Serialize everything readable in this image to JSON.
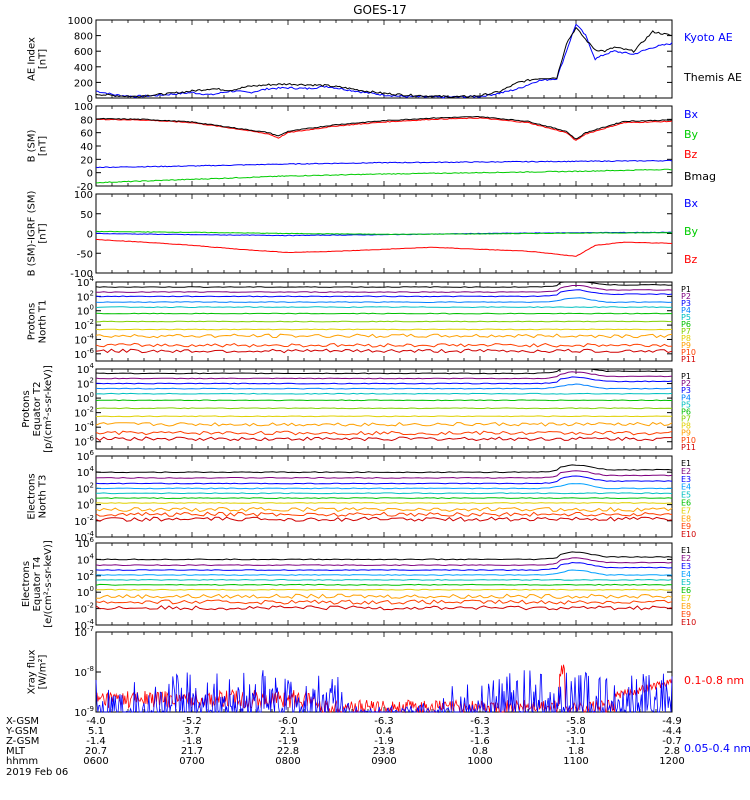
{
  "title": "GOES-17",
  "date_label": "2019 Feb 06",
  "colors": {
    "black": "#000000",
    "blue": "#0000ff",
    "green": "#00cc00",
    "red": "#ff0000"
  },
  "palette_p": [
    "#000000",
    "#7f007f",
    "#0000ff",
    "#0080ff",
    "#00c0c0",
    "#00c000",
    "#80d000",
    "#e0d000",
    "#ffa000",
    "#ff4000",
    "#d00000"
  ],
  "footer": {
    "labels": [
      "X-GSM",
      "Y-GSM",
      "Z-GSM",
      "MLT",
      "hhmm"
    ],
    "times": [
      "0600",
      "0700",
      "0800",
      "0900",
      "1000",
      "1100",
      "1200"
    ],
    "rows": [
      [
        "-4.0",
        "-5.2",
        "-6.0",
        "-6.3",
        "-6.3",
        "-5.8",
        "-4.9"
      ],
      [
        "5.1",
        "3.7",
        "2.1",
        "0.4",
        "-1.3",
        "-3.0",
        "-4.4"
      ],
      [
        "-1.4",
        "-1.8",
        "-1.9",
        "-1.9",
        "-1.6",
        "-1.1",
        "-0.7"
      ],
      [
        "20.7",
        "21.7",
        "22.8",
        "23.8",
        "0.8",
        "1.8",
        "2.8"
      ]
    ]
  },
  "chart_data": [
    {
      "type": "line",
      "ylabel": [
        "AE Index",
        "[nT]"
      ],
      "ylim": [
        0,
        1000
      ],
      "yticks": [
        "0",
        "200",
        "400",
        "600",
        "800",
        "1000"
      ],
      "x_range_hours": [
        6,
        12
      ],
      "series": [
        {
          "name": "Kyoto AE",
          "color": "blue",
          "x": [
            6,
            6.2,
            6.4,
            6.6,
            6.8,
            7.0,
            7.2,
            7.4,
            7.6,
            7.8,
            8.0,
            8.2,
            8.4,
            8.6,
            8.8,
            9.0,
            9.2,
            9.4,
            9.6,
            9.8,
            10.0,
            10.2,
            10.4,
            10.6,
            10.8,
            10.9,
            11.0,
            11.1,
            11.2,
            11.3,
            11.4,
            11.6,
            11.8,
            12.0
          ],
          "y": [
            90,
            40,
            20,
            30,
            50,
            70,
            40,
            90,
            70,
            120,
            130,
            120,
            150,
            110,
            70,
            40,
            20,
            15,
            10,
            15,
            20,
            60,
            120,
            220,
            250,
            600,
            950,
            800,
            500,
            560,
            600,
            560,
            650,
            700
          ]
        },
        {
          "name": "Themis AE",
          "color": "black",
          "x": [
            6,
            6.2,
            6.4,
            6.6,
            6.8,
            7.0,
            7.2,
            7.4,
            7.6,
            7.8,
            8.0,
            8.2,
            8.4,
            8.6,
            8.8,
            9.0,
            9.2,
            9.4,
            9.6,
            9.8,
            10.0,
            10.2,
            10.4,
            10.6,
            10.8,
            10.9,
            11.0,
            11.1,
            11.2,
            11.3,
            11.4,
            11.6,
            11.8,
            12.0
          ],
          "y": [
            50,
            30,
            20,
            40,
            60,
            90,
            120,
            100,
            150,
            170,
            180,
            170,
            160,
            130,
            90,
            60,
            40,
            30,
            20,
            15,
            30,
            80,
            200,
            250,
            260,
            700,
            900,
            750,
            620,
            600,
            650,
            600,
            850,
            800
          ]
        }
      ]
    },
    {
      "type": "line",
      "ylabel": [
        "B (SM)",
        "[nT]"
      ],
      "ylim": [
        -20,
        100
      ],
      "yticks": [
        "-20",
        "0",
        "20",
        "40",
        "60",
        "80",
        "100"
      ],
      "series": [
        {
          "name": "Bx",
          "color": "blue",
          "x": [
            6,
            7,
            8,
            9,
            10,
            11,
            12
          ],
          "y": [
            8,
            10,
            13,
            15,
            16,
            17,
            18
          ]
        },
        {
          "name": "By",
          "color": "green",
          "x": [
            6,
            7,
            8,
            9,
            10,
            11,
            12
          ],
          "y": [
            -15,
            -10,
            -5,
            -2,
            0,
            2,
            5
          ]
        },
        {
          "name": "Bz",
          "color": "red",
          "x": [
            6,
            6.5,
            7,
            7.5,
            7.8,
            7.9,
            8.0,
            8.5,
            9.0,
            9.5,
            10.0,
            10.5,
            10.9,
            11.0,
            11.1,
            11.5,
            12.0
          ],
          "y": [
            80,
            79,
            75,
            65,
            58,
            52,
            60,
            70,
            76,
            80,
            82,
            75,
            60,
            48,
            58,
            75,
            77
          ]
        },
        {
          "name": "Bmag",
          "color": "black",
          "x": [
            6,
            6.5,
            7,
            7.5,
            7.8,
            7.9,
            8.0,
            8.5,
            9.0,
            9.5,
            10.0,
            10.5,
            10.9,
            11.0,
            11.1,
            11.5,
            12.0
          ],
          "y": [
            81,
            80,
            76,
            66,
            60,
            55,
            62,
            72,
            78,
            82,
            84,
            77,
            62,
            50,
            60,
            77,
            79
          ]
        }
      ]
    },
    {
      "type": "line",
      "ylabel": [
        "B (SM)-IGRF (SM)",
        "[nT]"
      ],
      "ylim": [
        -100,
        100
      ],
      "yticks": [
        "-100",
        "-50",
        "0",
        "50",
        "100"
      ],
      "series": [
        {
          "name": "Bx",
          "color": "blue",
          "x": [
            6,
            7,
            8,
            9,
            10,
            11,
            12
          ],
          "y": [
            0,
            -3,
            -5,
            -3,
            0,
            2,
            3
          ]
        },
        {
          "name": "By",
          "color": "green",
          "x": [
            6,
            7,
            8,
            9,
            10,
            11,
            12
          ],
          "y": [
            5,
            3,
            0,
            -2,
            -1,
            1,
            2
          ]
        },
        {
          "name": "Bz",
          "color": "red",
          "x": [
            6,
            6.5,
            7,
            7.5,
            8.0,
            8.5,
            9.0,
            9.5,
            10.0,
            10.5,
            10.9,
            11.0,
            11.2,
            11.5,
            12.0
          ],
          "y": [
            -15,
            -22,
            -30,
            -40,
            -48,
            -45,
            -40,
            -35,
            -40,
            -45,
            -55,
            -58,
            -30,
            -22,
            -25
          ]
        }
      ]
    },
    {
      "type": "line",
      "scale": "log",
      "ylabel": [
        "Protons",
        "North T1"
      ],
      "ylim_exp": [
        -7,
        4
      ],
      "yticks_exp": [
        -6,
        -4,
        -2,
        0,
        2,
        4
      ],
      "channels": [
        "P1",
        "P2",
        "P3",
        "P4",
        "P5",
        "P6",
        "P7",
        "P8",
        "P9",
        "P10",
        "P11"
      ],
      "levels_exp": [
        3.3,
        2.6,
        2.0,
        1.2,
        0.5,
        -0.4,
        -1.5,
        -2.6,
        -3.5,
        -4.8,
        -5.6
      ]
    },
    {
      "type": "line",
      "scale": "log",
      "ylabel": [
        "Protons",
        "Equator T2",
        "[p/(cm²-s-sr-keV)]"
      ],
      "ylim_exp": [
        -7,
        4
      ],
      "yticks_exp": [
        -6,
        -4,
        -2,
        0,
        2,
        4
      ],
      "channels": [
        "P1",
        "P2",
        "P3",
        "P4",
        "P5",
        "P6",
        "P7",
        "P8",
        "P9",
        "P10",
        "P11"
      ],
      "levels_exp": [
        3.4,
        2.7,
        2.0,
        1.3,
        0.6,
        -0.3,
        -1.4,
        -2.5,
        -3.6,
        -4.8,
        -5.6
      ]
    },
    {
      "type": "line",
      "scale": "log",
      "ylabel": [
        "Electrons",
        "North T3"
      ],
      "ylim_exp": [
        -4,
        6
      ],
      "yticks_exp": [
        -4,
        -2,
        0,
        2,
        4,
        6
      ],
      "channels": [
        "E1",
        "E2",
        "E3",
        "E4",
        "E5",
        "E6",
        "E7",
        "E8",
        "E9",
        "E10"
      ],
      "levels_exp": [
        4.0,
        3.3,
        2.6,
        2.0,
        1.4,
        0.8,
        0.2,
        -0.6,
        -1.2,
        -1.8
      ]
    },
    {
      "type": "line",
      "scale": "log",
      "ylabel": [
        "Electrons",
        "Equator T4",
        "[e/(cm²-s-sr-keV)]"
      ],
      "ylim_exp": [
        -4,
        6
      ],
      "yticks_exp": [
        -4,
        -2,
        0,
        2,
        4,
        6
      ],
      "channels": [
        "E1",
        "E2",
        "E3",
        "E4",
        "E5",
        "E6",
        "E7",
        "E8",
        "E9",
        "E10"
      ],
      "levels_exp": [
        4.0,
        3.3,
        2.7,
        2.1,
        1.5,
        0.9,
        0.3,
        -0.5,
        -1.2,
        -1.9
      ]
    },
    {
      "type": "line",
      "scale": "log",
      "ylabel": [
        "Xray flux",
        "[W/m²]"
      ],
      "ylim_exp": [
        -9,
        -7
      ],
      "yticks_exp": [
        -9,
        -8,
        -7
      ],
      "series": [
        {
          "name": "0.1-0.8 nm",
          "color": "red"
        },
        {
          "name": "0.05-0.4 nm",
          "color": "blue"
        }
      ]
    }
  ]
}
